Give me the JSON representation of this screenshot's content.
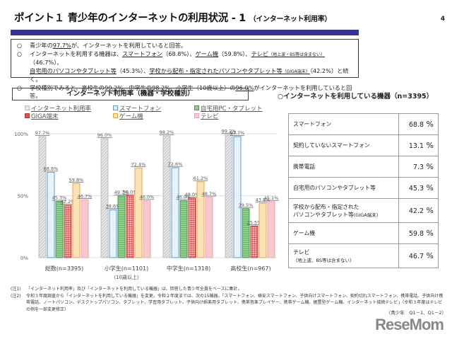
{
  "header": {
    "title": "ポイント１ 青少年のインターネットの利用状況 - 1",
    "subtitle": "（インターネット利用率）",
    "page_number": "4"
  },
  "summary": {
    "bullet": "○",
    "lines": [
      {
        "parts": [
          {
            "t": "青少年の"
          },
          {
            "t": "97.7%",
            "u": true
          },
          {
            "t": "が、インターネットを利用していると回答。"
          }
        ]
      },
      {
        "parts": [
          {
            "t": "インターネットを利用する機器は、"
          },
          {
            "t": "スマートフォン",
            "u": true
          },
          {
            "t": "（68.8%）、"
          },
          {
            "t": "ゲーム機",
            "u": true
          },
          {
            "t": "（59.8%）、"
          },
          {
            "t": "テレビ",
            "u": true
          },
          {
            "t": "（地上波・BS等は含まない）",
            "u": true,
            "s": true
          },
          {
            "t": "（46.7%）、"
          }
        ]
      },
      {
        "cont": true,
        "parts": [
          {
            "t": "自宅用のパソコンやタブレット等",
            "u": true
          },
          {
            "t": "（45.3%）、"
          },
          {
            "t": "学校から配布・指定されたパソコンやタブレット等",
            "u": true
          },
          {
            "t": "（GIGA端末）",
            "u": true,
            "s": true
          },
          {
            "t": "（42.2%）と続く。"
          }
        ]
      },
      {
        "parts": [
          {
            "t": "学校種別でみると、高校生の"
          },
          {
            "t": "99.2%",
            "u": true
          },
          {
            "t": "、中学生の"
          },
          {
            "t": "98.2%",
            "u": true
          },
          {
            "t": "、小学生（10歳以上）の"
          },
          {
            "t": "96.0%",
            "u": true
          },
          {
            "t": "がインターネットを利用していると回答。"
          }
        ]
      }
    ]
  },
  "chart_data": {
    "type": "bar",
    "title": "インターネット利用率（機器・学校種別）",
    "categories": [
      "総数(n=3395)",
      "小学生(n=1101)",
      "中学生(n=1318)",
      "高校生(n=967)"
    ],
    "category_sublabels": [
      "",
      "（10歳以上）",
      "",
      ""
    ],
    "series": [
      {
        "name": "インターネット利用率",
        "color": "#bdbdbd",
        "fill": "#e6e6e6",
        "pattern": "diag",
        "values": [
          97.7,
          96.0,
          98.2,
          99.2
        ]
      },
      {
        "name": "スマートフォン",
        "color": "#5b9bd5",
        "fill": "#e3f2fb",
        "pattern": "dots",
        "values": [
          68.8,
          38.6,
          72.6,
          97.7
        ]
      },
      {
        "name": "自宅用PC・タブレット",
        "color": "#3a9a4a",
        "fill": "#8fce8f",
        "pattern": "hlines",
        "values": [
          45.3,
          49.7,
          46.0,
          39.5
        ]
      },
      {
        "name": "GIGA端末",
        "color": "#c0392b",
        "fill": "#e74c4c",
        "pattern": "grid",
        "values": [
          42.2,
          50.0,
          48.0,
          25.5
        ]
      },
      {
        "name": "ゲーム機",
        "color": "#e0a84a",
        "fill": "#fbe3b5",
        "pattern": "diag2",
        "values": [
          59.8,
          72.4,
          61.2,
          43.8
        ]
      },
      {
        "name": "テレビ",
        "color": "#f2a0ae",
        "fill": "#f9c9d1",
        "pattern": "solid",
        "values": [
          46.7,
          46.0,
          48.7,
          45.1
        ]
      }
    ],
    "ylim": [
      0,
      100
    ],
    "yticks": [
      "0%",
      "50%",
      "100%"
    ],
    "ytick_values": [
      0,
      50,
      100
    ],
    "grid": true,
    "legend": "top",
    "xlabel": "",
    "ylabel": ""
  },
  "device_table": {
    "title": "○インターネットを利用している機器（n=3395）",
    "rows": [
      {
        "label": "スマートフォン",
        "value": "68.8",
        "unit": "%"
      },
      {
        "label": "契約していないスマートフォン",
        "value": "13.1",
        "unit": "%"
      },
      {
        "label": "携帯電話",
        "value": "7.3",
        "unit": "%"
      },
      {
        "label": "自宅用のパソコンやタブレット等",
        "value": "45.3",
        "unit": "%"
      },
      {
        "label": "学校から配布・指定された",
        "label2": "パソコンやタブレット等",
        "label2_small": "(GIGA端末)",
        "value": "42.2",
        "unit": "%"
      },
      {
        "label": "ゲーム機",
        "value": "59.8",
        "unit": "%"
      },
      {
        "label": "テレビ",
        "label2": "（地上波、BS等は含まない）",
        "value": "46.7",
        "unit": "%"
      }
    ]
  },
  "notes": [
    {
      "label": "(注1)",
      "text": "「インターネット利用率」及び「インターネットを利用している機器」は、回答した青少年全員をベースに集計。"
    },
    {
      "label": "(注2)",
      "text": "令和３年度調査から「インターネットを利用している機器」を変更。令和２年度までは、次の15機器。「スマートフォン、格安スマートフォン、子供向けスマートフォン、契約切れスマートフォン、携帯電話、子供向け携帯電話、ノートパソコン、デスクトップパソコン、タブレット、学習用タブレット、子供向け娯楽用タブレット、携帯音楽プレイヤー、携帯ゲーム機、据置型ゲーム機、インターネット接続テレビ」（令和３年度はテレビの例を一部変更修正）"
    }
  ],
  "source": "（青少年　Q1－1、Q1－2）",
  "logo": "ReseMom"
}
